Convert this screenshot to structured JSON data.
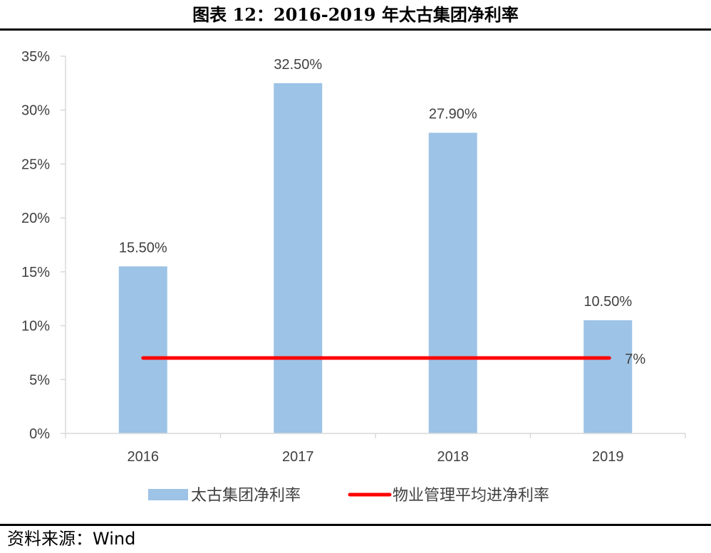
{
  "figure": {
    "title": "图表 12：2016-2019 年太古集团净利率",
    "source": "资料来源：Wind"
  },
  "chart_data": {
    "type": "bar",
    "categories": [
      "2016",
      "2017",
      "2018",
      "2019"
    ],
    "series": [
      {
        "name": "太古集团净利率",
        "type": "bar",
        "values": [
          15.5,
          32.5,
          27.9,
          10.5
        ],
        "labels": [
          "15.50%",
          "32.50%",
          "27.90%",
          "10.50%"
        ],
        "color": "#9DC3E6"
      },
      {
        "name": "物业管理平均进净利率",
        "type": "line",
        "values": [
          7,
          7,
          7,
          7
        ],
        "end_label": "7%",
        "color": "#FF0000"
      }
    ],
    "ylim": [
      0,
      35
    ],
    "yticks": [
      0,
      5,
      10,
      15,
      20,
      25,
      30,
      35
    ],
    "ytick_labels": [
      "0%",
      "5%",
      "10%",
      "15%",
      "20%",
      "25%",
      "30%",
      "35%"
    ],
    "grid": false,
    "legend": "bottom",
    "xlabel": "",
    "ylabel": ""
  }
}
